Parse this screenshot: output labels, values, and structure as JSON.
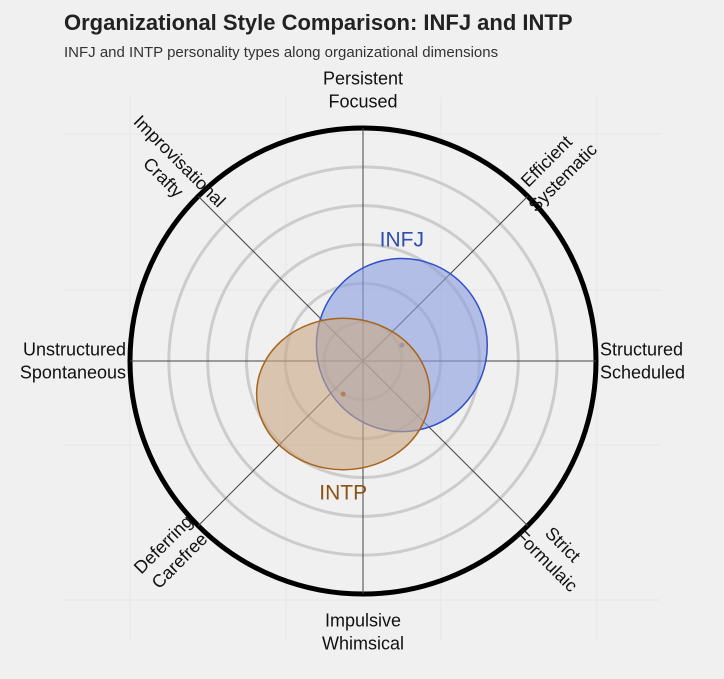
{
  "chart_data": {
    "type": "radar-ellipse",
    "title": "Organizational Style Comparison: INFJ and INTP",
    "subtitle": "INFJ and INTP personality types along organizational dimensions",
    "axes": [
      {
        "angle_deg": 90,
        "label": [
          "Persistent",
          "Focused"
        ]
      },
      {
        "angle_deg": 45,
        "label": [
          "Efficient",
          "Systematic"
        ]
      },
      {
        "angle_deg": 0,
        "label": [
          "Structured",
          "Scheduled"
        ]
      },
      {
        "angle_deg": -45,
        "label": [
          "Strict",
          "Formulaic"
        ]
      },
      {
        "angle_deg": -90,
        "label": [
          "Impulsive",
          "Whimsical"
        ]
      },
      {
        "angle_deg": -135,
        "label": [
          "Deferring",
          "Carefree"
        ]
      },
      {
        "angle_deg": 180,
        "label": [
          "Unstructured",
          "Spontaneous"
        ]
      },
      {
        "angle_deg": 135,
        "label": [
          "Improvisational",
          "Crafty"
        ]
      }
    ],
    "rings": [
      1,
      2,
      3,
      4,
      5
    ],
    "r_max": 6,
    "grid": true,
    "series": [
      {
        "name": "INFJ",
        "center_x": 1.0,
        "center_y": 0.41,
        "radius_x": 2.2,
        "radius_y": 2.23,
        "color": "#3050c8",
        "fill": "#8a9de0",
        "label_color": "#2f4db0"
      },
      {
        "name": "INTP",
        "center_x": -0.51,
        "center_y": -0.85,
        "radius_x": 2.23,
        "radius_y": 1.95,
        "color": "#a8641c",
        "fill": "#c9a983",
        "label_color": "#8a5214"
      }
    ]
  }
}
